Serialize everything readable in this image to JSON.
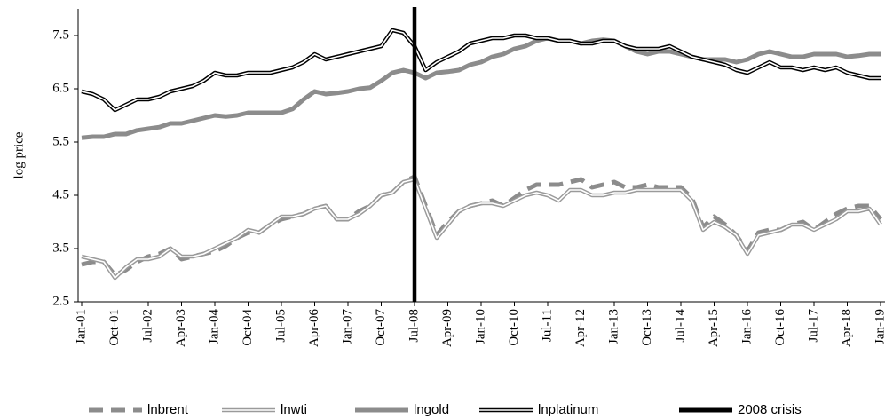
{
  "chart_data": {
    "type": "line",
    "y_label": "log price",
    "categories": [
      "Jan-01",
      null,
      null,
      "Oct-01",
      null,
      null,
      "Jul-02",
      null,
      null,
      "Apr-03",
      null,
      null,
      "Jan-04",
      null,
      null,
      "Oct-04",
      null,
      null,
      "Jul-05",
      null,
      null,
      "Apr-06",
      null,
      null,
      "Jan-07",
      null,
      null,
      "Oct-07",
      null,
      null,
      "Jul-08",
      null,
      null,
      "Apr-09",
      null,
      null,
      "Jan-10",
      null,
      null,
      "Oct-10",
      null,
      null,
      "Jul-11",
      null,
      null,
      "Apr-12",
      null,
      null,
      "Jan-13",
      null,
      null,
      "Oct-13",
      null,
      null,
      "Jul-14",
      null,
      null,
      "Apr-15",
      null,
      null,
      "Jan-16",
      null,
      null,
      "Oct-16",
      null,
      null,
      "Jul-17",
      null,
      null,
      "Apr-18",
      null,
      null,
      "Jan-19"
    ],
    "series": [
      {
        "name": "lnbrent",
        "color": "#8c8c8c",
        "style": "dashed",
        "values": [
          3.2,
          3.25,
          3.25,
          3.0,
          3.1,
          3.25,
          3.35,
          3.4,
          3.5,
          3.3,
          3.35,
          3.4,
          3.45,
          3.55,
          3.7,
          3.8,
          3.8,
          3.95,
          4.05,
          4.1,
          4.15,
          4.25,
          4.3,
          4.05,
          4.05,
          4.2,
          4.3,
          4.5,
          4.55,
          4.75,
          4.85,
          4.3,
          3.75,
          4.0,
          4.2,
          4.3,
          4.35,
          4.4,
          4.3,
          4.45,
          4.6,
          4.7,
          4.7,
          4.7,
          4.75,
          4.8,
          4.65,
          4.7,
          4.75,
          4.65,
          4.65,
          4.7,
          4.65,
          4.65,
          4.65,
          4.45,
          3.9,
          4.1,
          3.95,
          3.75,
          3.45,
          3.8,
          3.85,
          3.85,
          3.95,
          4.0,
          3.85,
          4.0,
          4.15,
          4.25,
          4.3,
          4.3,
          4.05
        ]
      },
      {
        "name": "lnwti",
        "color": "#9a9a9a",
        "style": "double",
        "values": [
          3.35,
          3.3,
          3.25,
          2.95,
          3.15,
          3.3,
          3.3,
          3.35,
          3.5,
          3.35,
          3.35,
          3.4,
          3.5,
          3.6,
          3.7,
          3.85,
          3.8,
          3.95,
          4.1,
          4.1,
          4.15,
          4.25,
          4.3,
          4.05,
          4.05,
          4.15,
          4.3,
          4.5,
          4.55,
          4.75,
          4.8,
          4.25,
          3.7,
          3.95,
          4.2,
          4.3,
          4.35,
          4.35,
          4.3,
          4.4,
          4.5,
          4.55,
          4.5,
          4.4,
          4.6,
          4.6,
          4.5,
          4.5,
          4.55,
          4.55,
          4.6,
          4.6,
          4.6,
          4.6,
          4.6,
          4.4,
          3.85,
          4.0,
          3.9,
          3.75,
          3.4,
          3.75,
          3.8,
          3.85,
          3.95,
          3.95,
          3.85,
          3.95,
          4.05,
          4.2,
          4.2,
          4.25,
          3.95
        ]
      },
      {
        "name": "lngold",
        "color": "#8c8c8c",
        "style": "solid",
        "values": [
          5.58,
          5.6,
          5.6,
          5.65,
          5.65,
          5.72,
          5.75,
          5.78,
          5.85,
          5.85,
          5.9,
          5.95,
          6.0,
          5.98,
          6.0,
          6.05,
          6.05,
          6.05,
          6.05,
          6.12,
          6.3,
          6.45,
          6.4,
          6.42,
          6.45,
          6.5,
          6.52,
          6.65,
          6.8,
          6.85,
          6.8,
          6.7,
          6.8,
          6.82,
          6.85,
          6.95,
          7.0,
          7.1,
          7.15,
          7.25,
          7.3,
          7.4,
          7.45,
          7.4,
          7.4,
          7.35,
          7.4,
          7.42,
          7.4,
          7.3,
          7.2,
          7.15,
          7.2,
          7.2,
          7.15,
          7.1,
          7.05,
          7.05,
          7.05,
          7.0,
          7.05,
          7.15,
          7.2,
          7.15,
          7.1,
          7.1,
          7.15,
          7.15,
          7.15,
          7.1,
          7.12,
          7.15,
          7.15
        ]
      },
      {
        "name": "lnplatinum",
        "color": "#000000",
        "style": "double",
        "values": [
          6.45,
          6.4,
          6.3,
          6.1,
          6.2,
          6.3,
          6.3,
          6.35,
          6.45,
          6.5,
          6.55,
          6.65,
          6.8,
          6.75,
          6.75,
          6.8,
          6.8,
          6.8,
          6.85,
          6.9,
          7.0,
          7.15,
          7.05,
          7.1,
          7.15,
          7.2,
          7.25,
          7.3,
          7.6,
          7.55,
          7.3,
          6.85,
          7.0,
          7.1,
          7.2,
          7.35,
          7.4,
          7.45,
          7.45,
          7.5,
          7.5,
          7.45,
          7.45,
          7.4,
          7.4,
          7.35,
          7.35,
          7.4,
          7.4,
          7.3,
          7.25,
          7.25,
          7.25,
          7.3,
          7.2,
          7.1,
          7.05,
          7.0,
          6.95,
          6.85,
          6.8,
          6.9,
          7.0,
          6.9,
          6.9,
          6.85,
          6.9,
          6.85,
          6.9,
          6.8,
          6.75,
          6.7,
          6.7
        ]
      }
    ],
    "marker_line": {
      "name": "2008 crisis",
      "x": "Jul-08",
      "color": "#000000"
    },
    "ylim": [
      2.5,
      8
    ],
    "yticks": [
      2.5,
      3.5,
      4.5,
      5.5,
      6.5,
      7.5
    ]
  }
}
